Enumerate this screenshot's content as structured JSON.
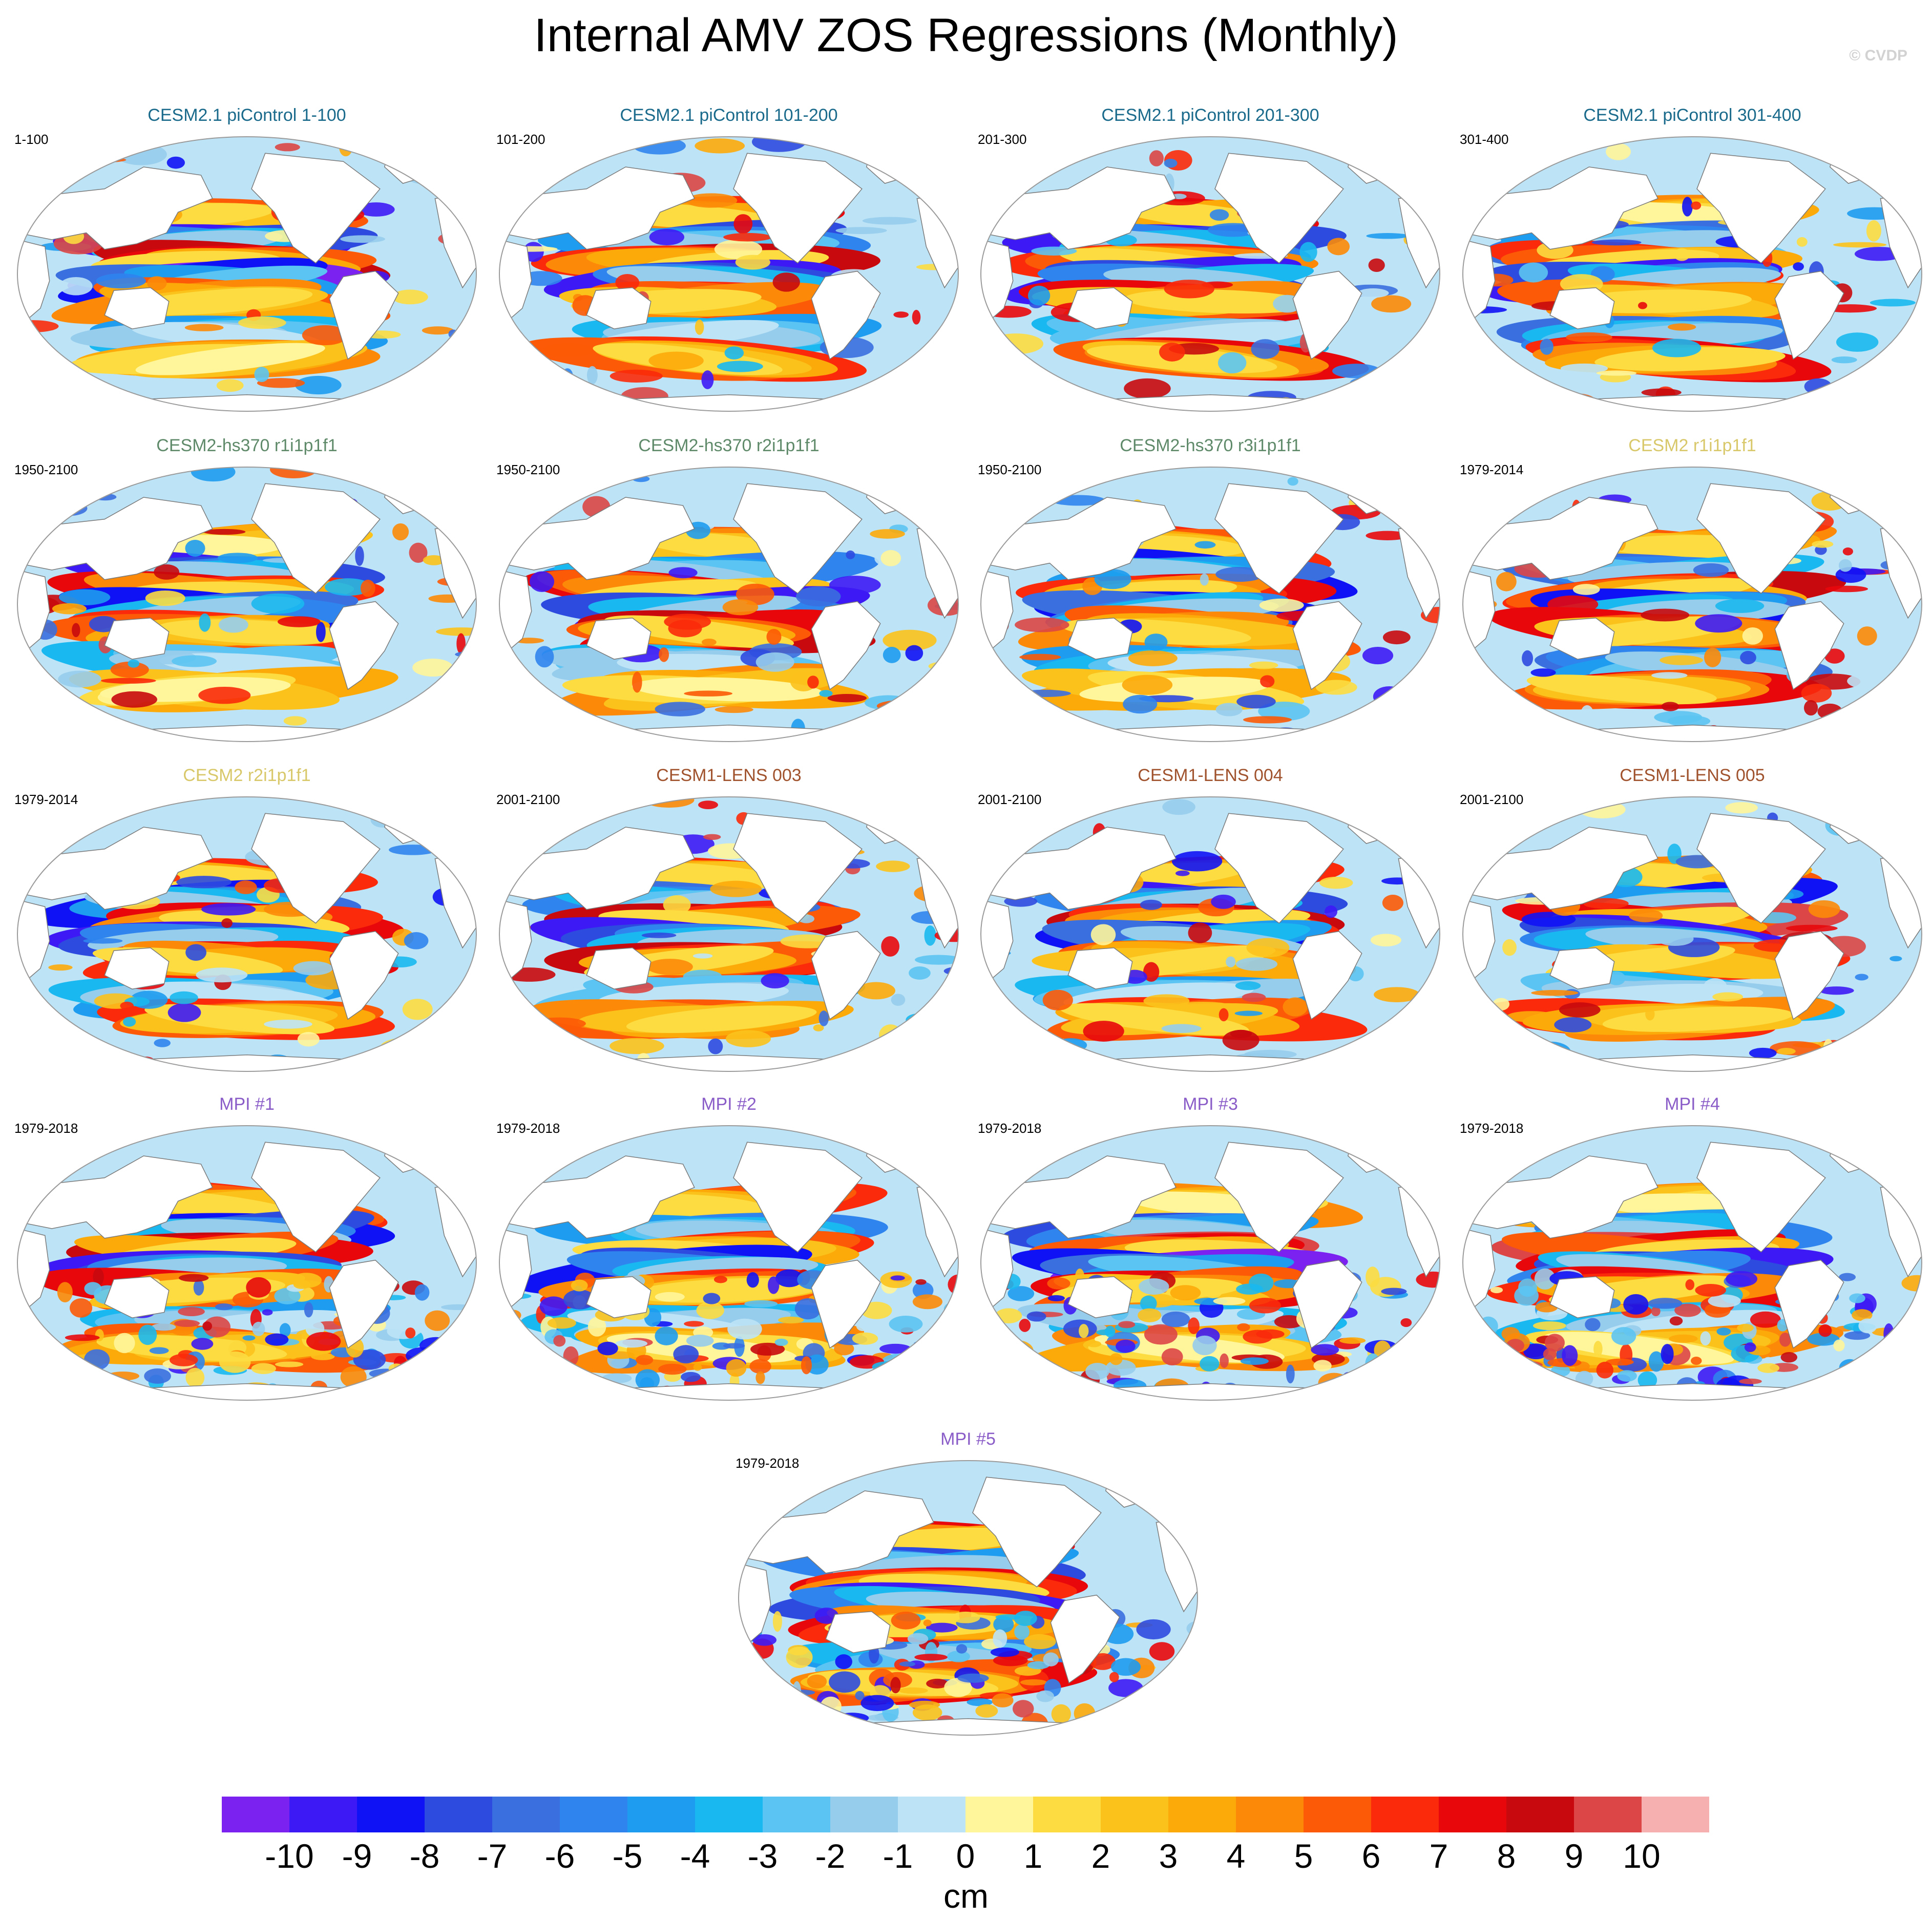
{
  "title": "Internal AMV ZOS Regressions (Monthly)",
  "watermark": "© CVDP",
  "colors": {
    "land": "#ffffff",
    "coast": "#7a7a7a",
    "title_cesm21_picontrol": "#1a6a8c",
    "title_cesm2_hs370": "#5f8a6a",
    "title_cesm2": "#d8c86a",
    "title_cesm1_lens": "#a0522d",
    "title_mpi": "#8a5cc8"
  },
  "panels": [
    {
      "title": "CESM2.1 piControl 1-100",
      "period": "1-100",
      "color_key": "title_cesm21_picontrol"
    },
    {
      "title": "CESM2.1 piControl 101-200",
      "period": "101-200",
      "color_key": "title_cesm21_picontrol"
    },
    {
      "title": "CESM2.1 piControl 201-300",
      "period": "201-300",
      "color_key": "title_cesm21_picontrol"
    },
    {
      "title": "CESM2.1 piControl 301-400",
      "period": "301-400",
      "color_key": "title_cesm21_picontrol"
    },
    {
      "title": "CESM2-hs370 r1i1p1f1",
      "period": "1950-2100",
      "color_key": "title_cesm2_hs370"
    },
    {
      "title": "CESM2-hs370 r2i1p1f1",
      "period": "1950-2100",
      "color_key": "title_cesm2_hs370"
    },
    {
      "title": "CESM2-hs370 r3i1p1f1",
      "period": "1950-2100",
      "color_key": "title_cesm2_hs370"
    },
    {
      "title": "CESM2 r1i1p1f1",
      "period": "1979-2014",
      "color_key": "title_cesm2"
    },
    {
      "title": "CESM2 r2i1p1f1",
      "period": "1979-2014",
      "color_key": "title_cesm2"
    },
    {
      "title": "CESM1-LENS 003",
      "period": "2001-2100",
      "color_key": "title_cesm1_lens"
    },
    {
      "title": "CESM1-LENS 004",
      "period": "2001-2100",
      "color_key": "title_cesm1_lens"
    },
    {
      "title": "CESM1-LENS 005",
      "period": "2001-2100",
      "color_key": "title_cesm1_lens"
    },
    {
      "title": "MPI #1",
      "period": "1979-2018",
      "color_key": "title_mpi"
    },
    {
      "title": "MPI #2",
      "period": "1979-2018",
      "color_key": "title_mpi"
    },
    {
      "title": "MPI #3",
      "period": "1979-2018",
      "color_key": "title_mpi"
    },
    {
      "title": "MPI #4",
      "period": "1979-2018",
      "color_key": "title_mpi"
    },
    {
      "title": "MPI #5",
      "period": "1979-2018",
      "color_key": "title_mpi"
    }
  ],
  "chart_data": {
    "type": "heatmap",
    "title": "Internal AMV ZOS Regressions (Monthly)",
    "variable": "ZOS",
    "units": "cm",
    "projection": "global map (elliptical, Pacific-centered)",
    "colorbar": {
      "orientation": "horizontal",
      "placement": "bottom",
      "labels": [
        "-10",
        "-9",
        "-8",
        "-7",
        "-6",
        "-5",
        "-4",
        "-3",
        "-2",
        "-1",
        "0",
        "1",
        "2",
        "3",
        "4",
        "5",
        "6",
        "7",
        "8",
        "9",
        "10"
      ],
      "levels": [
        -10,
        -9,
        -8,
        -7,
        -6,
        -5,
        -4,
        -3,
        -2,
        -1,
        0,
        1,
        2,
        3,
        4,
        5,
        6,
        7,
        8,
        9,
        10
      ],
      "colors": [
        "#7b22f0",
        "#3d1af5",
        "#0f12f5",
        "#2e4be0",
        "#3a6fe0",
        "#2f84ee",
        "#1e9cf0",
        "#1ab8f0",
        "#5cc4f2",
        "#96ccec",
        "#bde3f6",
        "#fff59a",
        "#fcdc40",
        "#fcc21c",
        "#fcaa0a",
        "#fc8a08",
        "#fc5a06",
        "#fa2a0a",
        "#e8080c",
        "#c8090d",
        "#dc4646",
        "#f7b0b0"
      ]
    },
    "panel_count": 17,
    "grid": false
  }
}
